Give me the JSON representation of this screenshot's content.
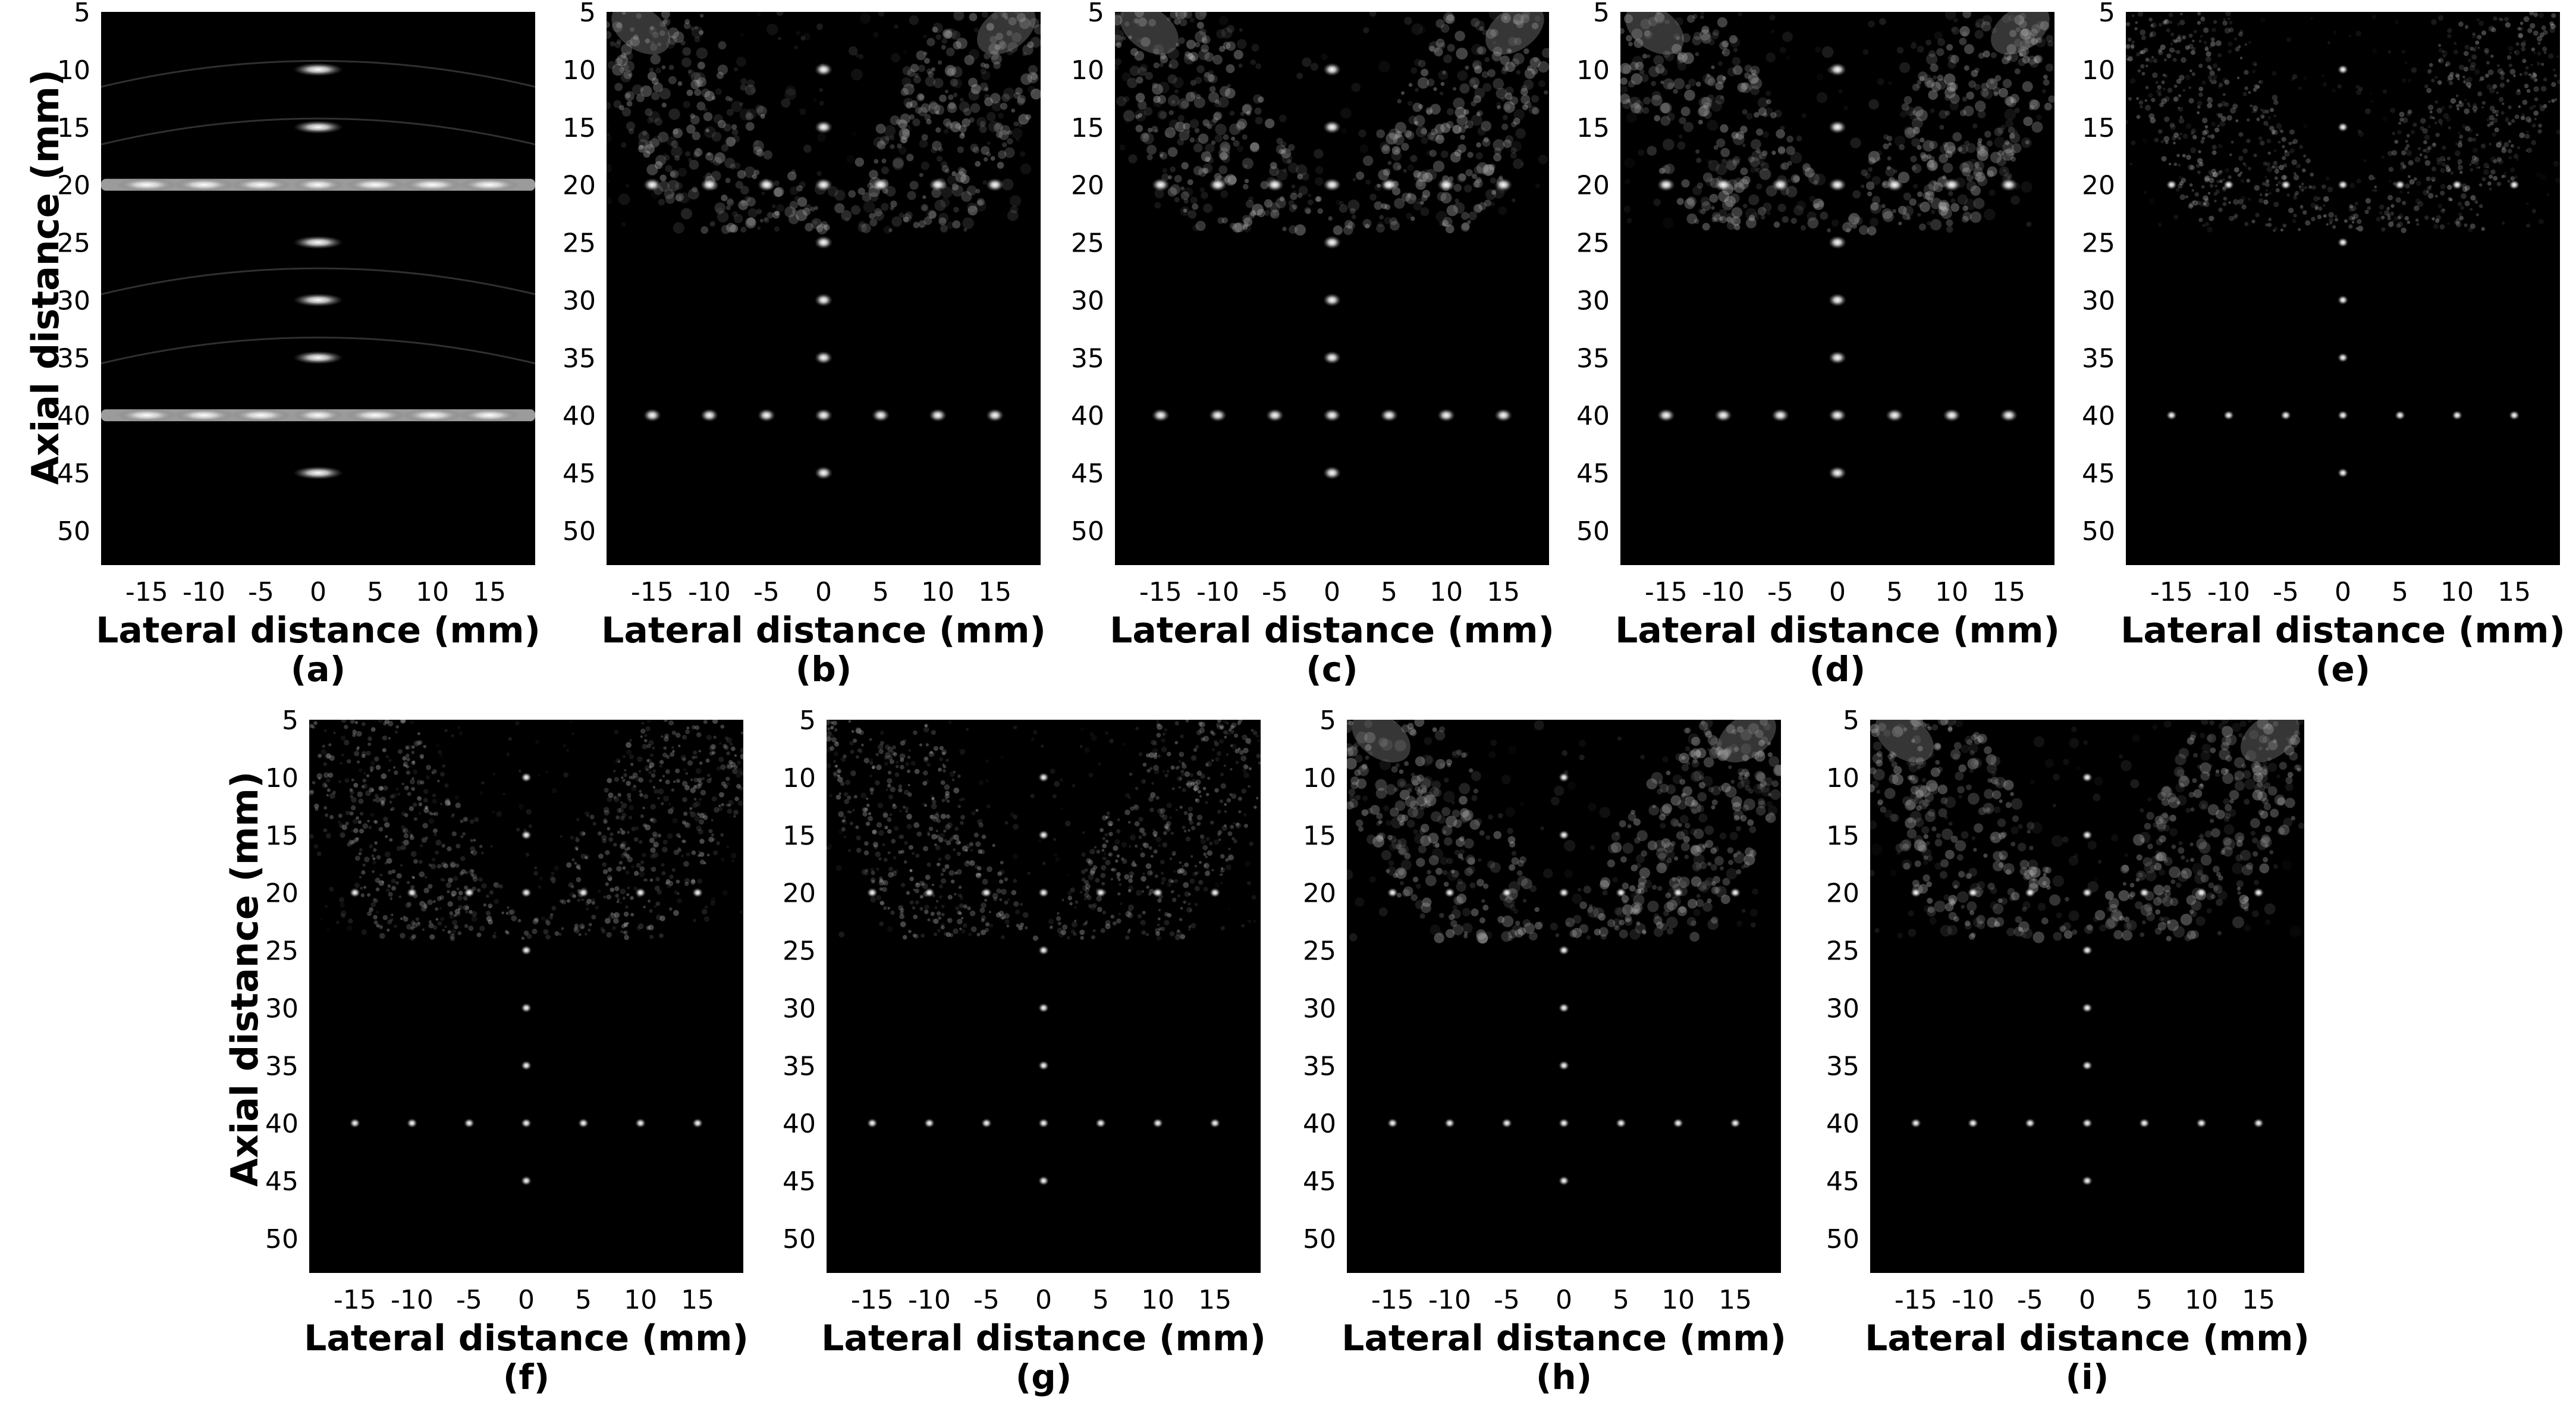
{
  "figure": {
    "panel_count": 9,
    "ylabel": "Axial distance (mm)",
    "xlabel": "Lateral distance (mm)",
    "x_ticks": [
      "-15",
      "-10",
      "-5",
      "0",
      "5",
      "10",
      "15"
    ],
    "y_ticks": [
      "5",
      "10",
      "15",
      "20",
      "25",
      "30",
      "35",
      "40",
      "45",
      "50"
    ],
    "x_tick_values": [
      -15,
      -10,
      -5,
      0,
      5,
      10,
      15
    ],
    "y_tick_values": [
      5,
      10,
      15,
      20,
      25,
      30,
      35,
      40,
      45,
      50
    ],
    "x_range_mm": [
      -19,
      19
    ],
    "y_range_mm": [
      5,
      53
    ],
    "colormap": "grayscale",
    "background_color": "#000000"
  },
  "panels": [
    {
      "label": "(a)",
      "style": "smeared"
    },
    {
      "label": "(b)",
      "style": "clutter"
    },
    {
      "label": "(c)",
      "style": "clutter"
    },
    {
      "label": "(d)",
      "style": "clutter"
    },
    {
      "label": "(e)",
      "style": "speckle"
    },
    {
      "label": "(f)",
      "style": "speckle"
    },
    {
      "label": "(g)",
      "style": "speckle"
    },
    {
      "label": "(h)",
      "style": "lobes"
    },
    {
      "label": "(i)",
      "style": "lobes"
    }
  ],
  "targets_mm": {
    "vertical_column_x": 0,
    "vertical_column_y": [
      10,
      15,
      25,
      30,
      35,
      45
    ],
    "row_y": [
      20,
      40
    ],
    "row_x": [
      -15,
      -10,
      -5,
      0,
      5,
      10,
      15
    ]
  }
}
